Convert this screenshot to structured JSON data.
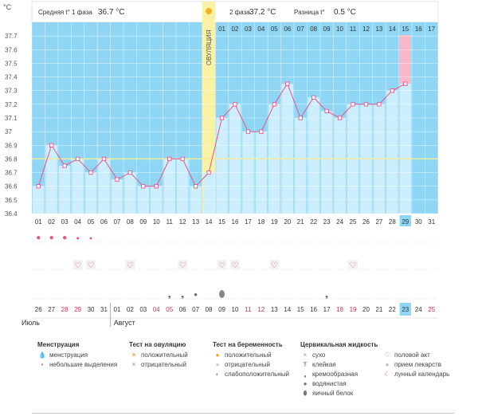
{
  "header": {
    "unit": "°C",
    "phase1_label": "Средняя t° 1 фаза",
    "phase1_value": "36.7 °C",
    "phase2_label": "2 фаза",
    "phase2_value": "37.2 °C",
    "diff_label": "Разница t°",
    "diff_value": "0.5 °C",
    "ovulation_label": "ОВУЛЯЦИЯ"
  },
  "chart_data": {
    "type": "line",
    "ylabel": "°C",
    "ylim": [
      36.4,
      37.8
    ],
    "yticks": [
      "36.4",
      "36.5",
      "36.6",
      "36.7",
      "36.8",
      "36.9",
      "37",
      "37.1",
      "37.2",
      "37.3",
      "37.4",
      "37.5",
      "37.6",
      "37.7"
    ],
    "coverline": 36.8,
    "ovulation_day": 14,
    "cycle_days": [
      "01",
      "02",
      "03",
      "04",
      "05",
      "06",
      "07",
      "08",
      "09",
      "10",
      "11",
      "12",
      "13",
      "14",
      "15",
      "16",
      "17",
      "18",
      "19",
      "20",
      "21",
      "22",
      "23",
      "24",
      "25",
      "26",
      "27",
      "28",
      "29",
      "30",
      "31"
    ],
    "phase2_days": [
      "01",
      "02",
      "03",
      "04",
      "05",
      "06",
      "07",
      "08",
      "09",
      "10",
      "11",
      "12",
      "13",
      "14",
      "15",
      "16",
      "17"
    ],
    "series": [
      {
        "values": [
          36.6,
          36.9,
          36.75,
          36.8,
          36.7,
          36.8,
          36.65,
          36.7,
          36.6,
          36.6,
          36.8,
          36.8,
          36.6,
          36.7,
          37.1,
          37.2,
          37.0,
          37.0,
          37.2,
          37.35,
          37.1,
          37.25,
          37.15,
          37.1,
          37.2,
          37.2,
          37.2,
          37.3,
          37.35
        ]
      }
    ],
    "highlight_day": "29",
    "highlight_date": "23"
  },
  "calendar": {
    "dates": [
      "26",
      "27",
      "28",
      "29",
      "30",
      "31",
      "01",
      "02",
      "03",
      "04",
      "05",
      "06",
      "07",
      "08",
      "09",
      "10",
      "11",
      "12",
      "13",
      "14",
      "15",
      "16",
      "17",
      "18",
      "19",
      "20",
      "21",
      "22",
      "23",
      "24",
      "25"
    ],
    "red_dates": [
      "28",
      "29",
      "04",
      "05",
      "11",
      "12",
      "18",
      "19",
      "25"
    ],
    "month1": "Июль",
    "month2": "Август"
  },
  "markers": {
    "menstruation": [
      1,
      2,
      3,
      4,
      5
    ],
    "sex": [
      4,
      5,
      8,
      12,
      15,
      16,
      19,
      25
    ],
    "fluid_cream": [
      11,
      12
    ],
    "fluid_water": [
      13
    ],
    "fluid_egg": [
      15
    ],
    "fluid_sticky": [
      23
    ]
  },
  "legend": {
    "menstruation": {
      "title": "Менструация",
      "items": [
        "менструация",
        "небольшие выделения"
      ]
    },
    "ovulation_test": {
      "title": "Тест на овуляцию",
      "items": [
        "положительный",
        "отрицательный"
      ]
    },
    "pregnancy_test": {
      "title": "Тест на беременность",
      "items": [
        "положительный",
        "отрицательный",
        "слабоположительный"
      ]
    },
    "cervical": {
      "title": "Цервикальная жидкость",
      "items": [
        "сухо",
        "клейкая",
        "кремообразная",
        "водянистая",
        "яичный белок"
      ]
    },
    "other": {
      "items": [
        "половой акт",
        "прием лекарств",
        "лунный календарь"
      ]
    }
  },
  "colors": {
    "fill": "#cdeefc",
    "bg": "#8fd6f5",
    "line": "#e8558a",
    "ovulation": "#f9f1a4",
    "highlight": "#f7b8c8"
  }
}
